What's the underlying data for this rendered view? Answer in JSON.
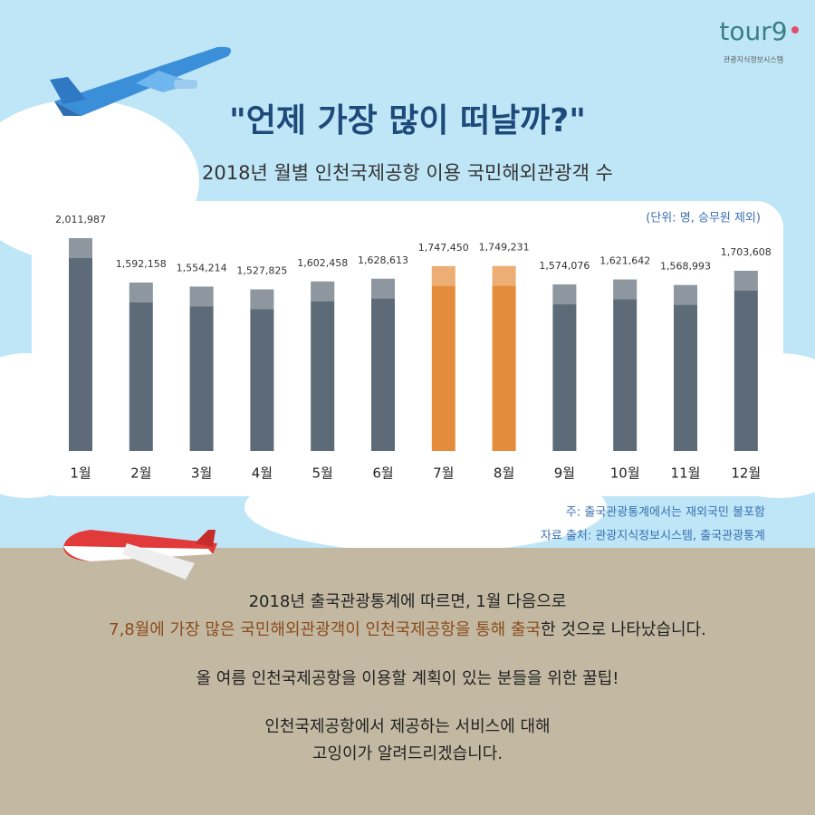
{
  "logo": {
    "name": "tour9",
    "caption": "관광지식정보시스템"
  },
  "chart_data": {
    "type": "bar",
    "title": "\"언제 가장 많이 떠날까?\"",
    "subtitle": "2018년 월별 인천국제공항 이용 국민해외관광객 수",
    "unit_note": "(단위: 명, 승무원 제외)",
    "categories": [
      "1월",
      "2월",
      "3월",
      "4월",
      "5월",
      "6월",
      "7월",
      "8월",
      "9월",
      "10월",
      "11월",
      "12월"
    ],
    "values": [
      2011987,
      1592158,
      1554214,
      1527825,
      1602458,
      1628613,
      1747450,
      1749231,
      1574076,
      1621642,
      1568993,
      1703608
    ],
    "value_labels": [
      "2,011,987",
      "1,592,158",
      "1,554,214",
      "1,527,825",
      "1,602,458",
      "1,628,613",
      "1,747,450",
      "1,749,231",
      "1,574,076",
      "1,621,642",
      "1,568,993",
      "1,703,608"
    ],
    "colors": [
      "#5d6b78",
      "#5d6b78",
      "#5d6b78",
      "#5d6b78",
      "#5d6b78",
      "#5d6b78",
      "#e58c3c",
      "#e58c3c",
      "#5d6b78",
      "#5d6b78",
      "#5d6b78",
      "#5d6b78"
    ],
    "notes": [
      "주: 출국관광통계에서는 재외국민 불포함",
      "자료 출처: 관광지식정보시스템, 출국관광통계"
    ]
  },
  "body": {
    "line1": "2018년 출국관광통계에 따르면, 1월 다음으로",
    "line2_highlight": "7,8월에 가장 많은 국민해외관광객이 인천국제공항을 통해 출국",
    "line2_rest": "한 것으로 나타났습니다.",
    "line3": "올 여름 인천국제공항을 이용할 계획이 있는 분들을 위한 꿀팁!",
    "line4": "인천국제공항에서 제공하는 서비스에 대해",
    "line5": "고잉이가 알려드리겠습니다."
  }
}
